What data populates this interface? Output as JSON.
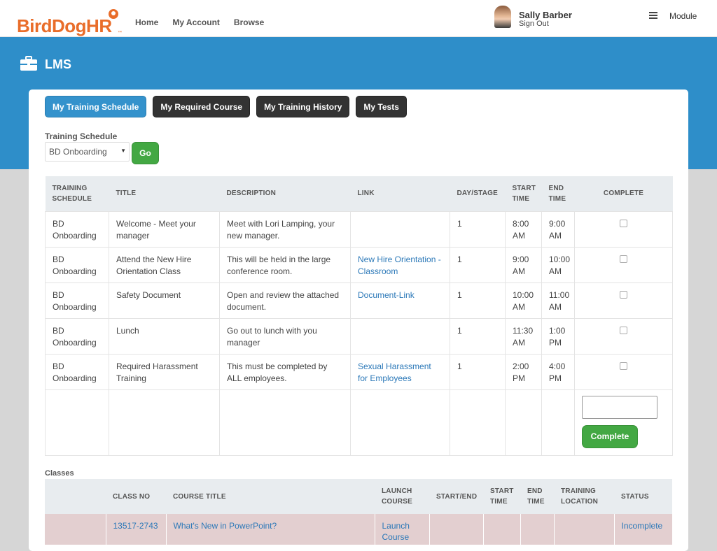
{
  "brand": {
    "logo_text": "BirdDogHR",
    "tm": "™"
  },
  "nav": [
    "Home",
    "My Account",
    "Browse"
  ],
  "user": {
    "name": "Sally Barber",
    "sign_out": "Sign Out"
  },
  "module_menu": {
    "label": "Module"
  },
  "page": {
    "title": "LMS"
  },
  "tabs": [
    {
      "label": "My Training Schedule",
      "active": true
    },
    {
      "label": "My Required Course",
      "active": false
    },
    {
      "label": "My Training History",
      "active": false
    },
    {
      "label": "My Tests",
      "active": false
    }
  ],
  "schedule_filter": {
    "label": "Training Schedule",
    "selected": "BD Onboarding",
    "go_label": "Go"
  },
  "schedule_table": {
    "headers": [
      "TRAINING SCHEDULE",
      "TITLE",
      "DESCRIPTION",
      "LINK",
      "DAY/STAGE",
      "START TIME",
      "END TIME",
      "COMPLETE"
    ],
    "rows": [
      {
        "schedule": "BD Onboarding",
        "title": "Welcome - Meet your manager",
        "description": "Meet with Lori Lamping, your new manager.",
        "link": "",
        "day": "1",
        "start": "8:00 AM",
        "end": "9:00 AM",
        "complete": false
      },
      {
        "schedule": "BD Onboarding",
        "title": "Attend the New Hire Orientation Class",
        "description": "This will be held in the large conference room.",
        "link": "New Hire Orientation - Classroom",
        "day": "1",
        "start": "9:00 AM",
        "end": "10:00 AM",
        "complete": false
      },
      {
        "schedule": "BD Onboarding",
        "title": "Safety Document",
        "description": "Open and review the attached document.",
        "link": "Document-Link",
        "day": "1",
        "start": "10:00 AM",
        "end": "11:00 AM",
        "complete": false
      },
      {
        "schedule": "BD Onboarding",
        "title": "Lunch",
        "description": "Go out to lunch with you manager",
        "link": "",
        "day": "1",
        "start": "11:30 AM",
        "end": "1:00 PM",
        "complete": false
      },
      {
        "schedule": "BD Onboarding",
        "title": "Required Harassment Training",
        "description": "This must be completed by ALL employees.",
        "link": "Sexual Harassment for Employees",
        "day": "1",
        "start": "2:00 PM",
        "end": "4:00 PM",
        "complete": false
      }
    ],
    "complete_button": "Complete"
  },
  "classes": {
    "label": "Classes",
    "headers": [
      "",
      "CLASS NO",
      "COURSE TITLE",
      "LAUNCH COURSE",
      "START/END",
      "START TIME",
      "END TIME",
      "TRAINING LOCATION",
      "STATUS"
    ],
    "rows": [
      {
        "class_no": "13517-2743",
        "course_title": "What's New in PowerPoint?",
        "launch": "Launch Course",
        "start_end": "",
        "start_time": "",
        "end_time": "",
        "location": "",
        "status": "Incomplete"
      }
    ]
  },
  "colors": {
    "brand_orange": "#e96d2a",
    "band_blue": "#2e8ec9",
    "active_tab": "#3492cc",
    "success_green": "#43a843",
    "class_row": "#e3cfd0"
  }
}
